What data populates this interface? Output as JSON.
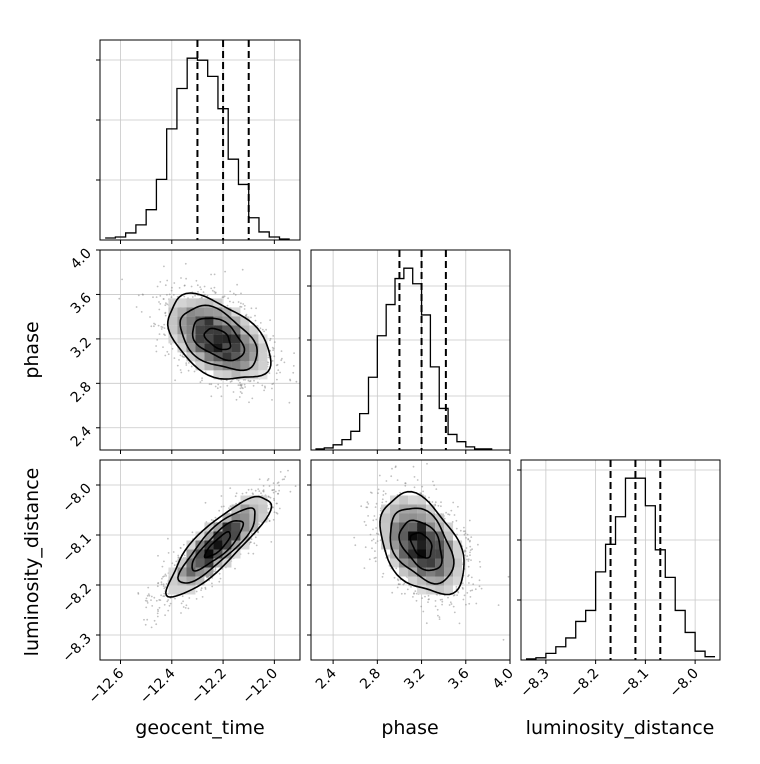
{
  "colors": {
    "line": "#000000",
    "grid": "#c8c8c8",
    "points": "#8c8c8c",
    "background": "#ffffff"
  },
  "chart_data": [
    {
      "type": "histogram",
      "parameter": "geocent_time",
      "xlim": [
        -12.68,
        -11.9
      ],
      "bin_edges": [
        -12.66,
        -12.62,
        -12.58,
        -12.54,
        -12.5,
        -12.46,
        -12.42,
        -12.38,
        -12.34,
        -12.3,
        -12.26,
        -12.22,
        -12.18,
        -12.14,
        -12.1,
        -12.06,
        -12.02,
        -11.98,
        -11.94
      ],
      "counts": [
        2,
        3,
        7,
        15,
        30,
        60,
        110,
        150,
        180,
        178,
        162,
        130,
        80,
        55,
        22,
        8,
        3,
        1
      ],
      "quantiles": [
        -12.3,
        -12.2,
        -12.1
      ],
      "grid": true
    },
    {
      "type": "contour_2d",
      "x_parameter": "geocent_time",
      "y_parameter": "phase",
      "xlim": [
        -12.68,
        -11.9
      ],
      "ylim": [
        2.2,
        4.0
      ],
      "y_ticks": [
        "2.4",
        "2.8",
        "3.2",
        "3.6",
        "4.0"
      ],
      "mean": [
        -12.22,
        3.2
      ],
      "sigma": [
        0.1,
        0.19
      ],
      "correlation": -0.45,
      "contour_levels": [
        "0.5σ",
        "1σ",
        "1.5σ",
        "2σ"
      ],
      "grid": true
    },
    {
      "type": "histogram",
      "parameter": "phase",
      "xlim": [
        2.2,
        4.0
      ],
      "bin_edges": [
        2.24,
        2.32,
        2.4,
        2.48,
        2.56,
        2.64,
        2.72,
        2.8,
        2.88,
        2.96,
        3.04,
        3.12,
        3.2,
        3.28,
        3.36,
        3.44,
        3.52,
        3.6,
        3.68,
        3.76,
        3.84
      ],
      "counts": [
        1,
        2,
        5,
        10,
        18,
        35,
        70,
        110,
        140,
        165,
        175,
        160,
        130,
        80,
        40,
        15,
        8,
        3,
        1,
        1
      ],
      "quantiles": [
        3.0,
        3.2,
        3.42
      ],
      "grid": true
    },
    {
      "type": "contour_2d",
      "x_parameter": "geocent_time",
      "y_parameter": "luminosity_distance",
      "xlim": [
        -12.68,
        -11.9
      ],
      "ylim": [
        -8.35,
        -7.95
      ],
      "y_ticks": [
        "−8.0",
        "−8.1",
        "−8.2",
        "−8.3"
      ],
      "mean": [
        -12.22,
        -8.12
      ],
      "sigma": [
        0.1,
        0.05
      ],
      "correlation": 0.85,
      "contour_levels": [
        "0.5σ",
        "1σ",
        "1.5σ",
        "2σ"
      ],
      "grid": true
    },
    {
      "type": "contour_2d",
      "x_parameter": "phase",
      "y_parameter": "luminosity_distance",
      "xlim": [
        2.2,
        4.0
      ],
      "ylim": [
        -8.35,
        -7.95
      ],
      "mean": [
        3.2,
        -8.12
      ],
      "sigma": [
        0.19,
        0.05
      ],
      "correlation": -0.4,
      "contour_levels": [
        "0.5σ",
        "1σ",
        "1.5σ",
        "2σ"
      ],
      "grid": true
    },
    {
      "type": "histogram",
      "parameter": "luminosity_distance",
      "xlim": [
        -8.35,
        -7.95
      ],
      "bin_edges": [
        -8.34,
        -8.32,
        -8.3,
        -8.28,
        -8.26,
        -8.24,
        -8.22,
        -8.2,
        -8.18,
        -8.16,
        -8.14,
        -8.12,
        -8.1,
        -8.08,
        -8.06,
        -8.04,
        -8.02,
        -8.0,
        -7.98,
        -7.96
      ],
      "counts": [
        1,
        2,
        6,
        12,
        20,
        35,
        45,
        80,
        105,
        130,
        165,
        165,
        140,
        100,
        75,
        45,
        25,
        8,
        3
      ],
      "quantiles": [
        -8.17,
        -8.12,
        -8.07
      ],
      "grid": true
    }
  ],
  "axes": {
    "x_ticks": [
      [
        "−12.6",
        "−12.4",
        "−12.2",
        "−12.0"
      ],
      [
        "2.4",
        "2.8",
        "3.2",
        "3.6",
        "4.0"
      ],
      [
        "−8.3",
        "−8.2",
        "−8.1",
        "−8.0"
      ]
    ],
    "x_labels": [
      "geocent_time",
      "phase",
      "luminosity_distance"
    ],
    "y_labels": [
      "phase",
      "luminosity_distance"
    ]
  }
}
